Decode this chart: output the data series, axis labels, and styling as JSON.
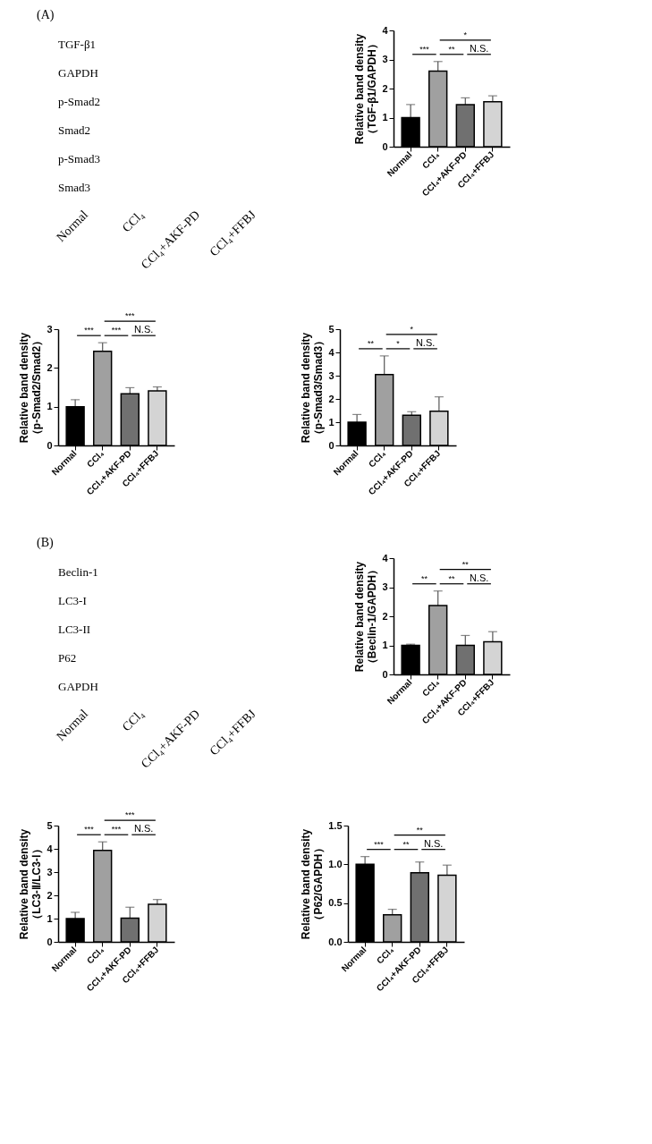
{
  "chart_data": [
    {
      "type": "other",
      "title": "(A)",
      "y_categories": [
        "TGF-β1",
        "GAPDH",
        "p-Smad2",
        "Smad2",
        "p-Smad3",
        "Smad3"
      ],
      "categories": [
        "Normal",
        "CCl₄",
        "CCl₄+AKF-PD",
        "CCl₄+FFBJ"
      ]
    },
    {
      "type": "bar",
      "ylabel": "Relative band density\n（TGF-β1/GAPDH）",
      "categories": [
        "Normal",
        "CCl₄",
        "CCl₄+AKF-PD",
        "CCl₄+FFBJ"
      ],
      "values": [
        1.0,
        2.6,
        1.45,
        1.55
      ],
      "errors": [
        [
          1.0,
          1.45
        ],
        [
          2.6,
          2.93
        ],
        [
          1.45,
          1.68
        ],
        [
          1.55,
          1.75
        ]
      ],
      "colors": [
        "#000000",
        "#a0a0a0",
        "#707070",
        "#d4d4d4"
      ],
      "ylim": [
        0,
        4
      ],
      "yticks": [
        0,
        1,
        2,
        3,
        4
      ],
      "grid": false,
      "annotations": [
        "***",
        "**",
        "N.S.",
        "*"
      ]
    },
    {
      "type": "bar",
      "ylabel": "Relative band density\n（p-Smad2/Smad2）",
      "categories": [
        "Normal",
        "CCl₄",
        "CCl₄+AKF-PD",
        "CCl₄+FFBJ"
      ],
      "values": [
        1.0,
        2.43,
        1.33,
        1.41
      ],
      "errors": [
        [
          1.0,
          1.18
        ],
        [
          2.43,
          2.65
        ],
        [
          1.33,
          1.49
        ],
        [
          1.41,
          1.51
        ]
      ],
      "colors": [
        "#000000",
        "#a0a0a0",
        "#707070",
        "#d4d4d4"
      ],
      "ylim": [
        0,
        3
      ],
      "yticks": [
        0,
        1,
        2,
        3
      ],
      "grid": false,
      "annotations": [
        "***",
        "***",
        "N.S.",
        "***"
      ]
    },
    {
      "type": "bar",
      "ylabel": "Relative band density\n（p-Smad3/Smad3）",
      "categories": [
        "Normal",
        "CCl₄",
        "CCl₄+AKF-PD",
        "CCl₄+FFBJ"
      ],
      "values": [
        1.0,
        3.05,
        1.3,
        1.47
      ],
      "errors": [
        [
          1.0,
          1.33
        ],
        [
          3.05,
          3.85
        ],
        [
          1.3,
          1.45
        ],
        [
          1.47,
          2.09
        ]
      ],
      "colors": [
        "#000000",
        "#a0a0a0",
        "#707070",
        "#d4d4d4"
      ],
      "ylim": [
        0,
        5
      ],
      "yticks": [
        0,
        1,
        2,
        3,
        4,
        5
      ],
      "grid": false,
      "annotations": [
        "**",
        "*",
        "N.S.",
        "*"
      ]
    },
    {
      "type": "other",
      "title": "(B)",
      "y_categories": [
        "Beclin-1",
        "LC3-I",
        "LC3-II",
        "P62",
        "GAPDH"
      ],
      "categories": [
        "Normal",
        "CCl₄",
        "CCl₄+AKF-PD",
        "CCl₄+FFBJ"
      ]
    },
    {
      "type": "bar",
      "ylabel": "Relative band density\n（Beclin-1/GAPDH）",
      "categories": [
        "Normal",
        "CCl₄",
        "CCl₄+AKF-PD",
        "CCl₄+FFBJ"
      ],
      "values": [
        1.0,
        2.37,
        1.0,
        1.12
      ],
      "errors": [
        [
          1.0,
          1.04
        ],
        [
          2.37,
          2.87
        ],
        [
          1.0,
          1.34
        ],
        [
          1.12,
          1.47
        ]
      ],
      "colors": [
        "#000000",
        "#a0a0a0",
        "#707070",
        "#d4d4d4"
      ],
      "ylim": [
        0,
        4
      ],
      "yticks": [
        0,
        1,
        2,
        3,
        4
      ],
      "grid": false,
      "annotations": [
        "**",
        "**",
        "N.S.",
        "**"
      ]
    },
    {
      "type": "bar",
      "ylabel": "Relative band density\n（LC3-Ⅱ/LC3-Ⅰ）",
      "categories": [
        "Normal",
        "CCl₄",
        "CCl₄+AKF-PD",
        "CCl₄+FFBJ"
      ],
      "values": [
        1.0,
        3.93,
        1.02,
        1.62
      ],
      "errors": [
        [
          1.0,
          1.27
        ],
        [
          3.93,
          4.3
        ],
        [
          1.02,
          1.49
        ],
        [
          1.62,
          1.82
        ]
      ],
      "colors": [
        "#000000",
        "#a0a0a0",
        "#707070",
        "#d4d4d4"
      ],
      "ylim": [
        0,
        5
      ],
      "yticks": [
        0,
        1,
        2,
        3,
        4,
        5
      ],
      "grid": false,
      "annotations": [
        "***",
        "***",
        "N.S.",
        "***"
      ]
    },
    {
      "type": "bar",
      "ylabel": "Relative band density\n（P62/GAPDH）",
      "categories": [
        "Normal",
        "CCl₄",
        "CCl₄+AKF-PD",
        "CCl₄+FFBJ"
      ],
      "values": [
        1.0,
        0.35,
        0.89,
        0.86
      ],
      "errors": [
        [
          1.0,
          1.1
        ],
        [
          0.35,
          0.42
        ],
        [
          0.89,
          1.03
        ],
        [
          0.86,
          0.99
        ]
      ],
      "colors": [
        "#000000",
        "#a0a0a0",
        "#707070",
        "#d4d4d4"
      ],
      "ylim": [
        0,
        1.5
      ],
      "yticks": [
        {
          "value": 0,
          "label": "0.0"
        },
        {
          "value": 0.5,
          "label": "0.5"
        },
        {
          "value": 1.0,
          "label": "1.0"
        },
        {
          "value": 1.5,
          "label": "1.5"
        }
      ],
      "grid": false,
      "annotations": [
        "***",
        "**",
        "N.S.",
        "**"
      ]
    }
  ]
}
